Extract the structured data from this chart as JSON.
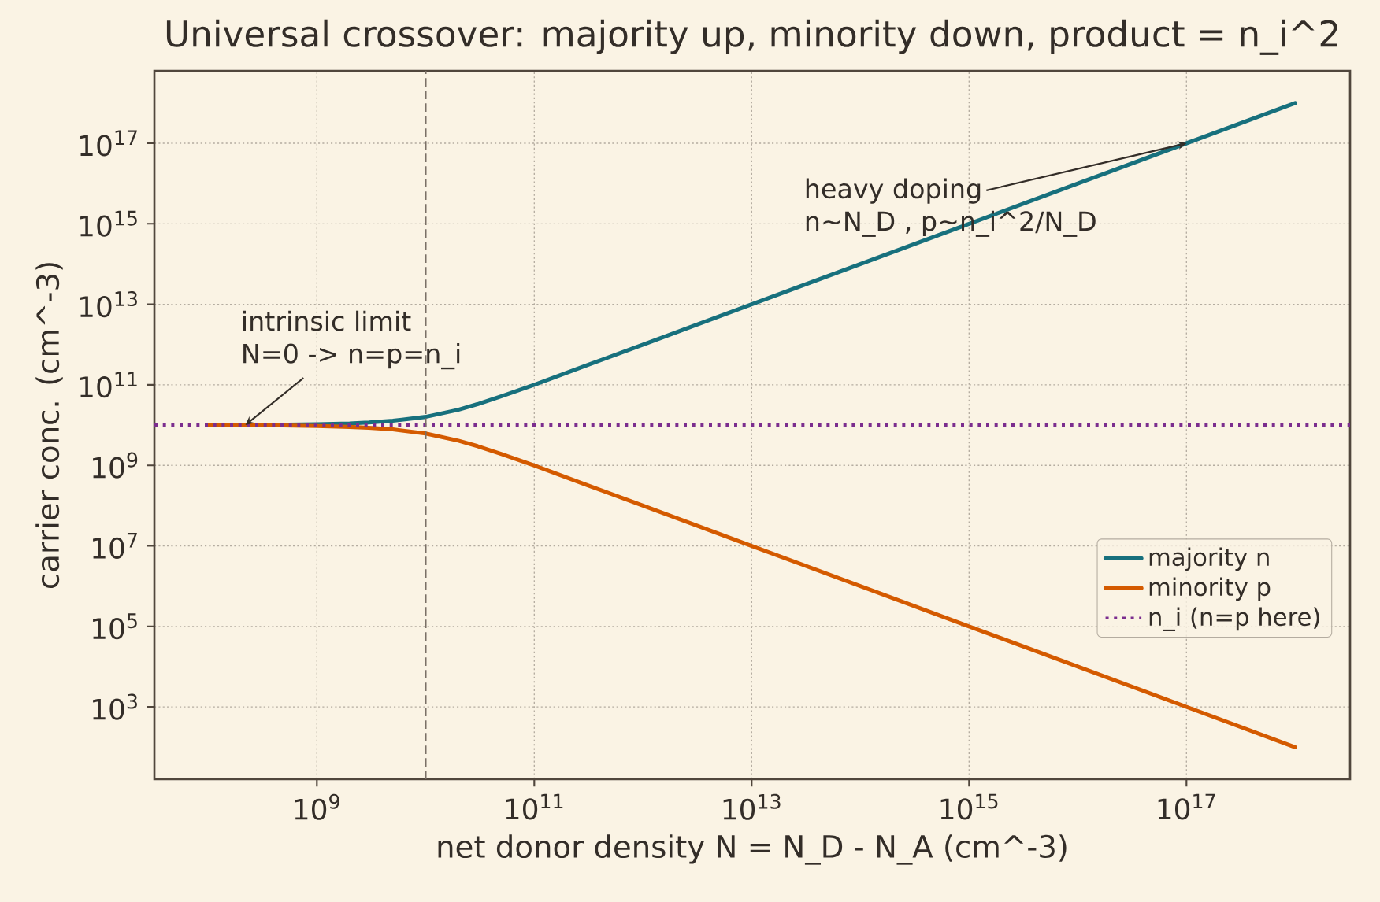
{
  "chart_data": {
    "type": "line",
    "title": "Universal crossover: majority up, minority down, product = n_i^2",
    "xlabel": "net donor density  N = N_D - N_A  (cm^-3)",
    "ylabel": "carrier conc.  (cm^-3)",
    "log": "xy",
    "x": [
      100000000.0,
      300000000.0,
      1000000000.0,
      2000000000.0,
      3000000000.0,
      5000000000.0,
      10000000000.0,
      20000000000.0,
      30000000000.0,
      50000000000.0,
      100000000000.0,
      300000000000.0,
      1000000000000.0,
      10000000000000.0,
      100000000000000.0,
      1000000000000000.0,
      1e+16,
      1e+17,
      1e+18
    ],
    "series": [
      {
        "name": "majority  n",
        "color": "#17707d",
        "line_style": "solid",
        "values": [
          10000000000.0,
          10000000000.0,
          10500000000.0,
          11000000000.0,
          11600000000.0,
          12800000000.0,
          16000000000.0,
          24000000000.0,
          33000000000.0,
          52000000000.0,
          100000000000.0,
          300000000000.0,
          1000000000000.0,
          10000000000000.0,
          100000000000000.0,
          1000000000000000.0,
          1e+16,
          1e+17,
          1e+18
        ]
      },
      {
        "name": "minority  p",
        "color": "#d45a00",
        "line_style": "solid",
        "values": [
          10000000000.0,
          10000000000.0,
          9500000000.0,
          9000000000.0,
          8600000000.0,
          7800000000.0,
          6200000000.0,
          4100000000.0,
          3000000000.0,
          1900000000.0,
          990000000.0,
          330000000.0,
          100000000.0,
          10000000.0,
          1000000.0,
          100000.0,
          10000.0,
          1000.0,
          100.0
        ]
      }
    ],
    "xlim": [
      32000000.0,
      3.2e+18
    ],
    "ylim": [
      16,
      6.3e+18
    ],
    "xticks": [
      {
        "value": 1000000000.0,
        "label": "10$^{9}$"
      },
      {
        "value": 100000000000.0,
        "label": "10$^{11}$"
      },
      {
        "value": 10000000000000.0,
        "label": "10$^{13}$"
      },
      {
        "value": 1000000000000000.0,
        "label": "10$^{15}$"
      },
      {
        "value": 1e+17,
        "label": "10$^{17}$"
      }
    ],
    "yticks": [
      {
        "value": 1000.0,
        "label": "10$^{3}$"
      },
      {
        "value": 100000.0,
        "label": "10$^{5}$"
      },
      {
        "value": 10000000.0,
        "label": "10$^{7}$"
      },
      {
        "value": 1000000000.0,
        "label": "10$^{9}$"
      },
      {
        "value": 100000000000.0,
        "label": "10$^{11}$"
      },
      {
        "value": 10000000000000.0,
        "label": "10$^{13}$"
      },
      {
        "value": 1000000000000000.0,
        "label": "10$^{15}$"
      },
      {
        "value": 1e+17,
        "label": "10$^{17}$"
      }
    ],
    "ref_lines": [
      {
        "axis": "y",
        "value": 10000000000.0,
        "label": "n_i  (n=p here)",
        "color": "#7b2d8e",
        "line_style": "dotted"
      },
      {
        "axis": "x",
        "value": 10000000000.0,
        "color": "#7a7066",
        "line_style": "dashed"
      }
    ],
    "annotations": [
      "intrinsic limit",
      {
        "text": "N=0  ->  n=p=n_i",
        "x": 220000000.0,
        "y": 10000000000.0
      },
      {
        "text": "heavy doping",
        "x": 1e+17,
        "y": 1e+17
      },
      "n~N_D , p~n_i^2/N_D"
    ],
    "grid": true,
    "legend": "bottom right"
  }
}
